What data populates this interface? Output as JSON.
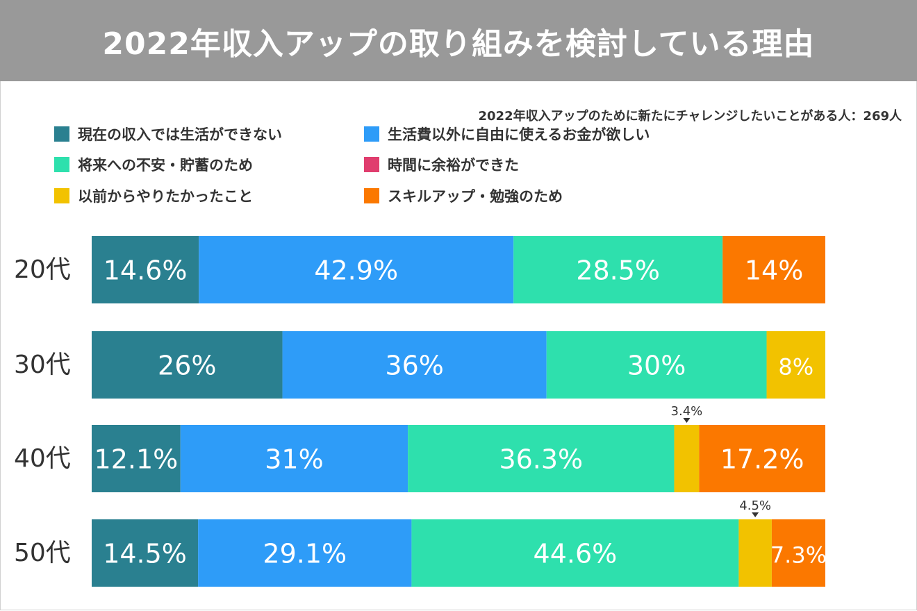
{
  "title": "2022年収入アップの取り組みを検討している理由",
  "chart_data": {
    "type": "bar",
    "orientation": "horizontal-stacked-100",
    "title": "2022年収入アップの取り組みを検討している理由",
    "subtitle": "2022年収入アップのために新たにチャレンジしたいことがある人：269人",
    "categories": [
      "20代",
      "30代",
      "40代",
      "50代"
    ],
    "series": [
      {
        "name": "現在の収入では生活ができない",
        "color": "#2a8090",
        "values": [
          14.6,
          26,
          12.1,
          14.5
        ],
        "labels": [
          "14.6%",
          "26%",
          "12.1%",
          "14.5%"
        ]
      },
      {
        "name": "生活費以外に自由に使えるお金が欲しい",
        "color": "#2e9cf8",
        "values": [
          42.9,
          36,
          31,
          29.1
        ],
        "labels": [
          "42.9%",
          "36%",
          "31%",
          "29.1%"
        ]
      },
      {
        "name": "将来への不安・貯蓄のため",
        "color": "#2ee0ad",
        "values": [
          28.5,
          30,
          36.3,
          44.6
        ],
        "labels": [
          "28.5%",
          "30%",
          "36.3%",
          "44.6%"
        ]
      },
      {
        "name": "時間に余裕ができた",
        "color": "#e03d6e",
        "values": [
          0,
          0,
          0,
          0
        ],
        "labels": [
          "",
          "",
          "",
          ""
        ]
      },
      {
        "name": "以前からやりたかったこと",
        "color": "#f2c200",
        "values": [
          0,
          8,
          3.4,
          4.5
        ],
        "labels": [
          "",
          "8%",
          "3.4%",
          "4.5%"
        ]
      },
      {
        "name": "スキルアップ・勉強のため",
        "color": "#fb7800",
        "values": [
          14,
          0,
          17.2,
          7.3
        ],
        "labels": [
          "14%",
          "",
          "17.2%",
          "7.3%"
        ]
      }
    ],
    "xlim": [
      0,
      100
    ]
  }
}
